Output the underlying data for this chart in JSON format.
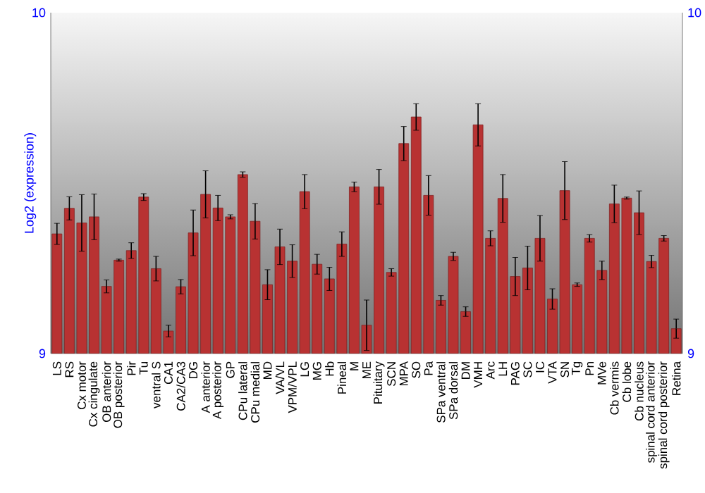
{
  "chart_data": {
    "type": "bar",
    "ylabel": "Log2 (expression)",
    "categories": [
      "LS",
      "RS",
      "Cx motor",
      "Cx cingulate",
      "OB anterior",
      "OB posterior",
      "Pir",
      "Tu",
      "ventral S",
      "CA1",
      "CA2/CA3",
      "DG",
      "A anterior",
      "A posterior",
      "GP",
      "CPu lateral",
      "CPu medial",
      "MD",
      "VA/VL",
      "VPM/VPL",
      "LG",
      "MG",
      "Hb",
      "Pineal",
      "M",
      "ME",
      "Pituitary",
      "SCN",
      "MPA",
      "SO",
      "Pa",
      "SPa ventral",
      "SPa dorsal",
      "DM",
      "VMH",
      "Arc",
      "LH",
      "PAG",
      "SC",
      "IC",
      "VTA",
      "SN",
      "Tg",
      "Pn",
      "MVe",
      "Cb vermis",
      "Cb lobe",
      "Cb nucleus",
      "spinal cord anterior",
      "spinal cord posterior",
      "Retina"
    ],
    "values": [
      9.351,
      9.426,
      9.383,
      9.401,
      9.197,
      9.274,
      9.302,
      9.459,
      9.249,
      9.066,
      9.196,
      9.354,
      9.467,
      9.427,
      9.401,
      9.525,
      9.388,
      9.202,
      9.313,
      9.271,
      9.475,
      9.262,
      9.219,
      9.321,
      9.489,
      9.083,
      9.489,
      9.238,
      9.616,
      9.694,
      9.464,
      9.156,
      9.285,
      9.123,
      9.671,
      9.338,
      9.455,
      9.226,
      9.251,
      9.338,
      9.16,
      9.478,
      9.202,
      9.338,
      9.244,
      9.439,
      9.456,
      9.413,
      9.27,
      9.338,
      9.073
    ],
    "errors": [
      0.031,
      0.034,
      0.083,
      0.067,
      0.019,
      0.003,
      0.023,
      0.01,
      0.036,
      0.017,
      0.021,
      0.067,
      0.069,
      0.037,
      0.006,
      0.008,
      0.052,
      0.044,
      0.052,
      0.048,
      0.05,
      0.029,
      0.034,
      0.036,
      0.014,
      0.074,
      0.051,
      0.011,
      0.05,
      0.039,
      0.058,
      0.014,
      0.012,
      0.014,
      0.062,
      0.022,
      0.07,
      0.056,
      0.064,
      0.067,
      0.03,
      0.085,
      0.005,
      0.011,
      0.027,
      0.055,
      0.003,
      0.064,
      0.018,
      0.008,
      0.028
    ],
    "color": "#b83232",
    "ylim": [
      9,
      10
    ],
    "yticks": [
      9,
      10
    ],
    "y2lim": [
      9,
      10
    ],
    "y2ticks": [
      9,
      10
    ]
  }
}
